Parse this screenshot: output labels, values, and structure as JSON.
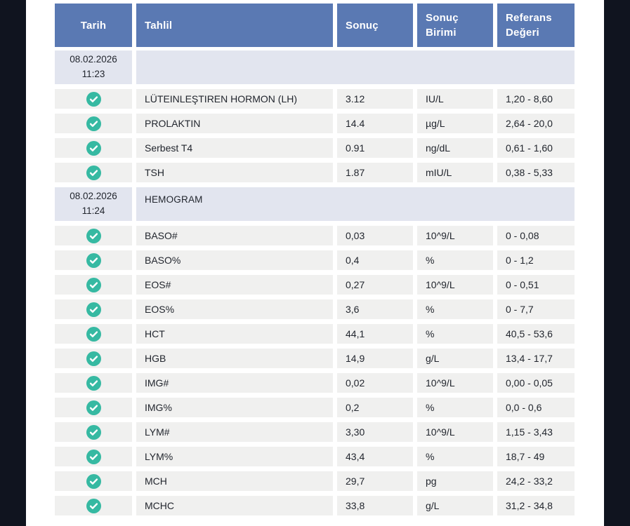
{
  "colors": {
    "header_bg": "#5a79b3",
    "header_text": "#ffffff",
    "date_row_bg": "#e2e5ef",
    "row_bg": "#f0f0ef",
    "edge_bg": "#10141f",
    "text": "#22262e",
    "check_icon": "#36b9a2"
  },
  "table": {
    "columns": [
      {
        "key": "tarih",
        "label": "Tarih"
      },
      {
        "key": "tahlil",
        "label": "Tahlil"
      },
      {
        "key": "sonuc",
        "label": "Sonuç"
      },
      {
        "key": "sonuc-birimi",
        "label": "Sonuç Birimi"
      },
      {
        "key": "referans-degeri",
        "label": "Referans Değeri"
      }
    ],
    "status_icon": "check-circle-icon",
    "groups": [
      {
        "date": "08.02.2026",
        "time": "11:23",
        "group_name": "",
        "rows": [
          {
            "test": "LÜTEINLEŞTIREN HORMON (LH)",
            "result": "3.12",
            "unit": "IU/L",
            "reference": "1,20 - 8,60"
          },
          {
            "test": "PROLAKTIN",
            "result": "14.4",
            "unit": "µg/L",
            "reference": "2,64 - 20,0"
          },
          {
            "test": "Serbest T4",
            "result": "0.91",
            "unit": "ng/dL",
            "reference": "0,61 - 1,60"
          },
          {
            "test": "TSH",
            "result": "1.87",
            "unit": "mIU/L",
            "reference": "0,38 - 5,33"
          }
        ]
      },
      {
        "date": "08.02.2026",
        "time": "11:24",
        "group_name": "HEMOGRAM",
        "rows": [
          {
            "test": "BASO#",
            "result": "0,03",
            "unit": "10^9/L",
            "reference": "0 - 0,08"
          },
          {
            "test": "BASO%",
            "result": "0,4",
            "unit": "%",
            "reference": "0 - 1,2"
          },
          {
            "test": "EOS#",
            "result": "0,27",
            "unit": "10^9/L",
            "reference": "0 - 0,51"
          },
          {
            "test": "EOS%",
            "result": "3,6",
            "unit": "%",
            "reference": "0 - 7,7"
          },
          {
            "test": "HCT",
            "result": "44,1",
            "unit": "%",
            "reference": "40,5 - 53,6"
          },
          {
            "test": "HGB",
            "result": "14,9",
            "unit": "g/L",
            "reference": "13,4 - 17,7"
          },
          {
            "test": "IMG#",
            "result": "0,02",
            "unit": "10^9/L",
            "reference": "0,00 - 0,05"
          },
          {
            "test": "IMG%",
            "result": "0,2",
            "unit": "%",
            "reference": "0,0 - 0,6"
          },
          {
            "test": "LYM#",
            "result": "3,30",
            "unit": "10^9/L",
            "reference": "1,15 - 3,43"
          },
          {
            "test": "LYM%",
            "result": "43,4",
            "unit": "%",
            "reference": "18,7 - 49"
          },
          {
            "test": "MCH",
            "result": "29,7",
            "unit": "pg",
            "reference": "24,2 - 33,2"
          },
          {
            "test": "MCHC",
            "result": "33,8",
            "unit": "g/L",
            "reference": "31,2 - 34,8"
          }
        ]
      }
    ]
  }
}
